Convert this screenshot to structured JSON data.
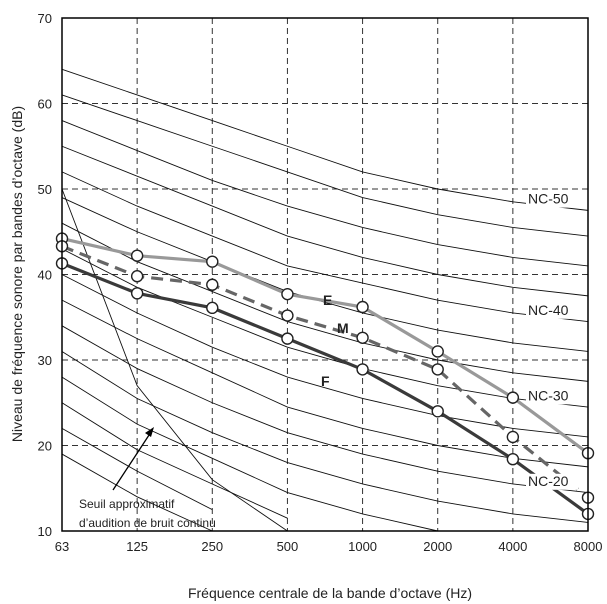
{
  "chart_data": {
    "type": "line",
    "xlabel": "Fréquence centrale de la bande d’octave (Hz)",
    "ylabel": "Niveau de fréquence sonore par bandes d’octave (dB)",
    "x_categories": [
      "63",
      "125",
      "250",
      "500",
      "1000",
      "2000",
      "4000",
      "8000"
    ],
    "x_scale": "log2 (octave bands)",
    "ylim": [
      10,
      70
    ],
    "y_ticks": [
      "10",
      "20",
      "30",
      "40",
      "50",
      "60",
      "70"
    ],
    "grid": "dashed at each octave band and every 10 dB",
    "series": [
      {
        "name": "E",
        "color": "#999999",
        "style": "solid",
        "values": [
          44.2,
          42.2,
          41.5,
          37.7,
          36.2,
          31.0,
          25.6,
          19.1
        ]
      },
      {
        "name": "M",
        "color": "#666666",
        "style": "dashed",
        "values": [
          43.3,
          39.8,
          38.8,
          35.2,
          32.6,
          28.9,
          21.0,
          13.9
        ]
      },
      {
        "name": "F",
        "color": "#3a3a3a",
        "style": "solid",
        "values": [
          41.3,
          37.8,
          36.1,
          32.5,
          28.9,
          24.0,
          18.4,
          12.0
        ]
      }
    ],
    "nc_curves": [
      {
        "label": "NC-50",
        "values": [
          64,
          61,
          58,
          55,
          52,
          50,
          48.5,
          47.5
        ]
      },
      {
        "label": "",
        "values": [
          61,
          58,
          55,
          52,
          49,
          47,
          45.5,
          44.5
        ]
      },
      {
        "label": "",
        "values": [
          58,
          54.5,
          51,
          48,
          45.5,
          43.5,
          42,
          41
        ]
      },
      {
        "label": "",
        "values": [
          55,
          51.5,
          48,
          44.5,
          42,
          40,
          38.5,
          37.5
        ]
      },
      {
        "label": "NC-40",
        "values": [
          52,
          48,
          44.5,
          41,
          39,
          37,
          35.5,
          34.5
        ]
      },
      {
        "label": "",
        "values": [
          49,
          45,
          41.5,
          38,
          35.5,
          33.5,
          32,
          31
        ]
      },
      {
        "label": "",
        "values": [
          46,
          41.5,
          38,
          34.5,
          32,
          30,
          28.5,
          27.5
        ]
      },
      {
        "label": "NC-30",
        "values": [
          43,
          38.5,
          35,
          31.5,
          29,
          27,
          25.5,
          24.5
        ]
      },
      {
        "label": "",
        "values": [
          40,
          35.5,
          31.5,
          28,
          25.5,
          23.5,
          22,
          21
        ]
      },
      {
        "label": "",
        "values": [
          37,
          32.5,
          28.5,
          24.5,
          22,
          20,
          18.5,
          17.5
        ]
      },
      {
        "label": "NC-20",
        "values": [
          34,
          29,
          25,
          21.5,
          19,
          17,
          15.5,
          14.5
        ]
      },
      {
        "label": "",
        "values": [
          31,
          25.5,
          21.5,
          18,
          15.5,
          13.5,
          12,
          11
        ]
      },
      {
        "label": "",
        "values": [
          28,
          22.5,
          18.5,
          14.5,
          12,
          10
        ]
      },
      {
        "label": "",
        "values": [
          25,
          19.5,
          15.5,
          11.5
        ]
      },
      {
        "label": "",
        "values": [
          22,
          17,
          12.5
        ]
      },
      {
        "label": "",
        "values": [
          19,
          14,
          10
        ]
      }
    ],
    "threshold_curve": {
      "x": [
        "63",
        "125",
        "250",
        "500"
      ],
      "values": [
        50,
        27,
        16,
        10
      ]
    },
    "annotation": {
      "lines": [
        "Seuil approximatif",
        "d’audition de bruit continu"
      ]
    }
  }
}
